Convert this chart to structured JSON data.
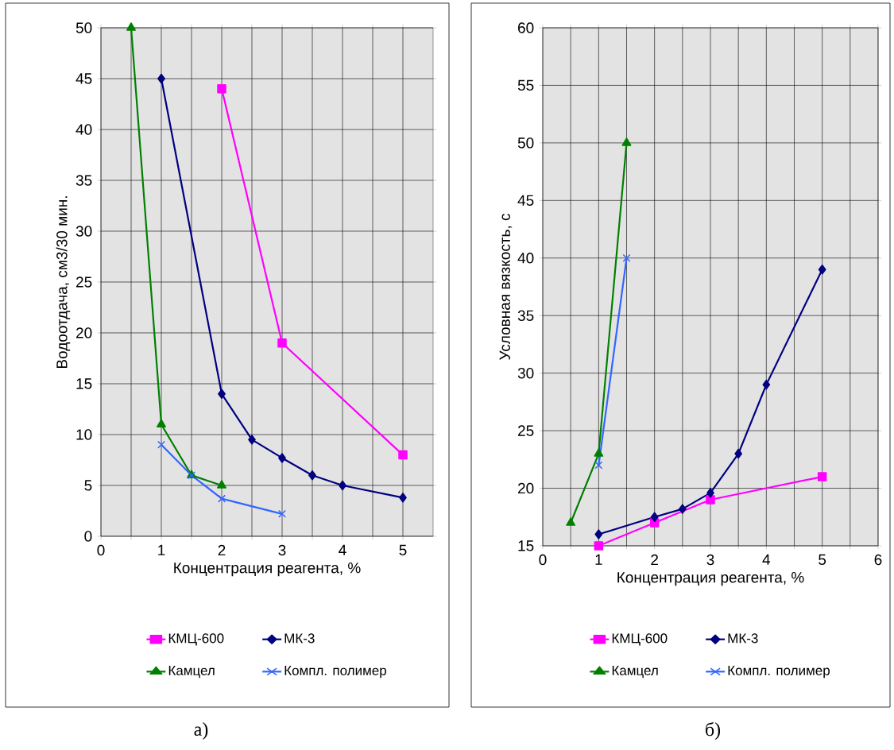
{
  "chart_data": [
    {
      "type": "line",
      "xlabel": "Концентрация реагента, %",
      "ylabel": "Водоотдача, см3/30 мин.",
      "xlim": [
        0,
        5.5
      ],
      "ylim": [
        0,
        50
      ],
      "xticks": [
        0,
        {
          "value": 0.5,
          "label": null
        },
        1,
        {
          "value": 1.5,
          "label": null
        },
        2,
        {
          "value": 2.5,
          "label": null
        },
        3,
        {
          "value": 3.5,
          "label": null
        },
        4,
        {
          "value": 4.5,
          "label": null
        },
        5
      ],
      "yticks": [
        0,
        5,
        10,
        15,
        20,
        25,
        30,
        35,
        40,
        45,
        50
      ],
      "grid": true,
      "legend": "bottom",
      "annotations": [
        "а)"
      ],
      "series": [
        {
          "name": "КМЦ-600",
          "color": "#ff00ff",
          "marker": "square",
          "x": [
            2,
            3,
            5
          ],
          "values": [
            44,
            19,
            8
          ]
        },
        {
          "name": "МК-3",
          "color": "#000080",
          "marker": "diamond",
          "x": [
            1,
            2,
            2.5,
            3,
            3.5,
            4,
            5
          ],
          "values": [
            45,
            14,
            9.5,
            7.7,
            6,
            5,
            3.8
          ]
        },
        {
          "name": "Камцел",
          "color": "#008000",
          "marker": "triangle",
          "x": [
            0.5,
            1,
            1.5,
            2
          ],
          "values": [
            50,
            11,
            6,
            5
          ]
        },
        {
          "name": "Компл. полимер",
          "color": "#3366ff",
          "marker": "cross",
          "x": [
            1,
            1.5,
            2,
            3
          ],
          "values": [
            9,
            6,
            3.7,
            2.2
          ]
        }
      ]
    },
    {
      "type": "line",
      "xlabel": "Концентрация реагента, %",
      "ylabel": "Условная вязкость, с",
      "xlim": [
        0,
        6
      ],
      "ylim": [
        15,
        60
      ],
      "xticks": [
        0,
        {
          "value": 0.5,
          "label": null
        },
        1,
        {
          "value": 1.5,
          "label": null
        },
        2,
        {
          "value": 2.5,
          "label": null
        },
        3,
        {
          "value": 3.5,
          "label": null
        },
        4,
        {
          "value": 4.5,
          "label": null
        },
        5,
        {
          "value": 5.5,
          "label": null
        },
        6
      ],
      "yticks": [
        15,
        20,
        25,
        30,
        35,
        40,
        45,
        50,
        55,
        60
      ],
      "grid": true,
      "legend": "bottom",
      "annotations": [
        "б)"
      ],
      "series": [
        {
          "name": "КМЦ-600",
          "color": "#ff00ff",
          "marker": "square",
          "x": [
            1,
            2,
            3,
            5
          ],
          "values": [
            15,
            17,
            19,
            21
          ]
        },
        {
          "name": "МК-3",
          "color": "#000080",
          "marker": "diamond",
          "x": [
            1,
            2,
            2.5,
            3,
            3.5,
            4,
            5
          ],
          "values": [
            16,
            17.5,
            18.2,
            19.6,
            23,
            29,
            39
          ]
        },
        {
          "name": "Камцел",
          "color": "#008000",
          "marker": "triangle",
          "x": [
            0.5,
            1,
            1.5
          ],
          "values": [
            17,
            23,
            50
          ]
        },
        {
          "name": "Компл. полимер",
          "color": "#3366ff",
          "marker": "cross",
          "x": [
            1,
            1.5
          ],
          "values": [
            22,
            40
          ]
        }
      ]
    }
  ]
}
